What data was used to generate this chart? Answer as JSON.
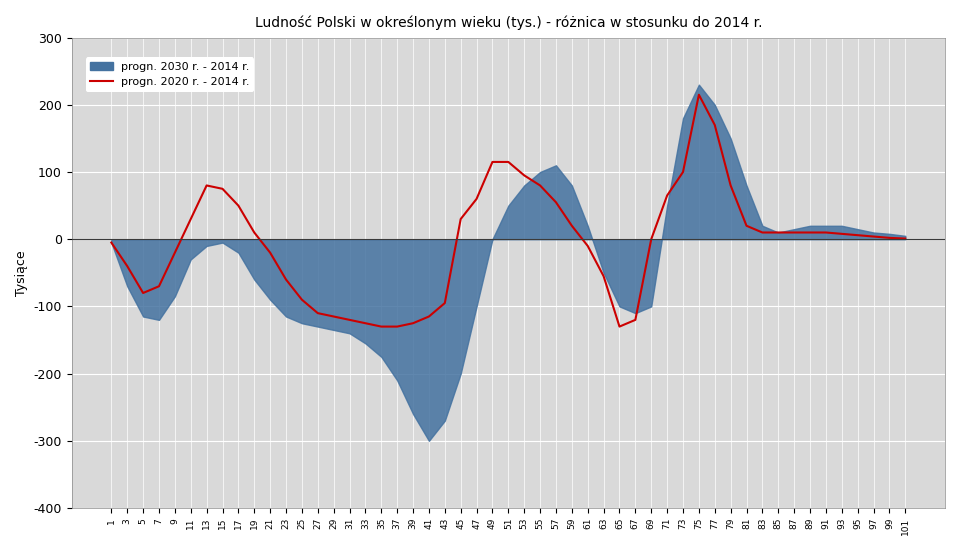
{
  "title": "Ludność Polski w określonym wieku (tys.) - różnica w stosunku do 2014 r.",
  "ylabel": "Tysiące",
  "legend_2030": "progn. 2030 r. - 2014 r.",
  "legend_2020": "progn. 2020 r. - 2014 r.",
  "fill_color": "#4472a0",
  "line_color": "#cc0000",
  "bg_color": "#d9d9d9",
  "plot_bg_color": "#d9d9d9",
  "ylim": [
    -400,
    300
  ],
  "yticks": [
    -400,
    -300,
    -200,
    -100,
    0,
    100,
    200,
    300
  ],
  "ages": [
    1,
    3,
    5,
    7,
    9,
    11,
    13,
    15,
    17,
    19,
    21,
    23,
    25,
    27,
    29,
    31,
    33,
    35,
    37,
    39,
    41,
    43,
    45,
    47,
    49,
    51,
    53,
    55,
    57,
    59,
    61,
    63,
    65,
    67,
    69,
    71,
    73,
    75,
    77,
    79,
    81,
    83,
    85,
    87,
    89,
    91,
    93,
    95,
    97,
    99,
    101
  ],
  "data_2030": [
    -5,
    -70,
    -115,
    -120,
    -85,
    -30,
    -10,
    -5,
    -20,
    -60,
    -90,
    -115,
    -125,
    -130,
    -135,
    -140,
    -155,
    -175,
    -210,
    -260,
    -300,
    -270,
    -200,
    -100,
    0,
    50,
    80,
    100,
    110,
    80,
    20,
    -50,
    -100,
    -110,
    -100,
    50,
    180,
    230,
    200,
    150,
    80,
    20,
    10,
    15,
    20,
    20,
    20,
    15,
    10,
    8,
    5
  ],
  "data_2020": [
    -5,
    -40,
    -80,
    -70,
    -20,
    30,
    80,
    75,
    50,
    10,
    -20,
    -60,
    -90,
    -110,
    -115,
    -120,
    -125,
    -130,
    -130,
    -125,
    -115,
    -95,
    30,
    60,
    115,
    115,
    95,
    80,
    55,
    20,
    -10,
    -55,
    -130,
    -120,
    0,
    65,
    100,
    215,
    170,
    80,
    20,
    10,
    10,
    10,
    10,
    10,
    8,
    6,
    4,
    2,
    1
  ]
}
